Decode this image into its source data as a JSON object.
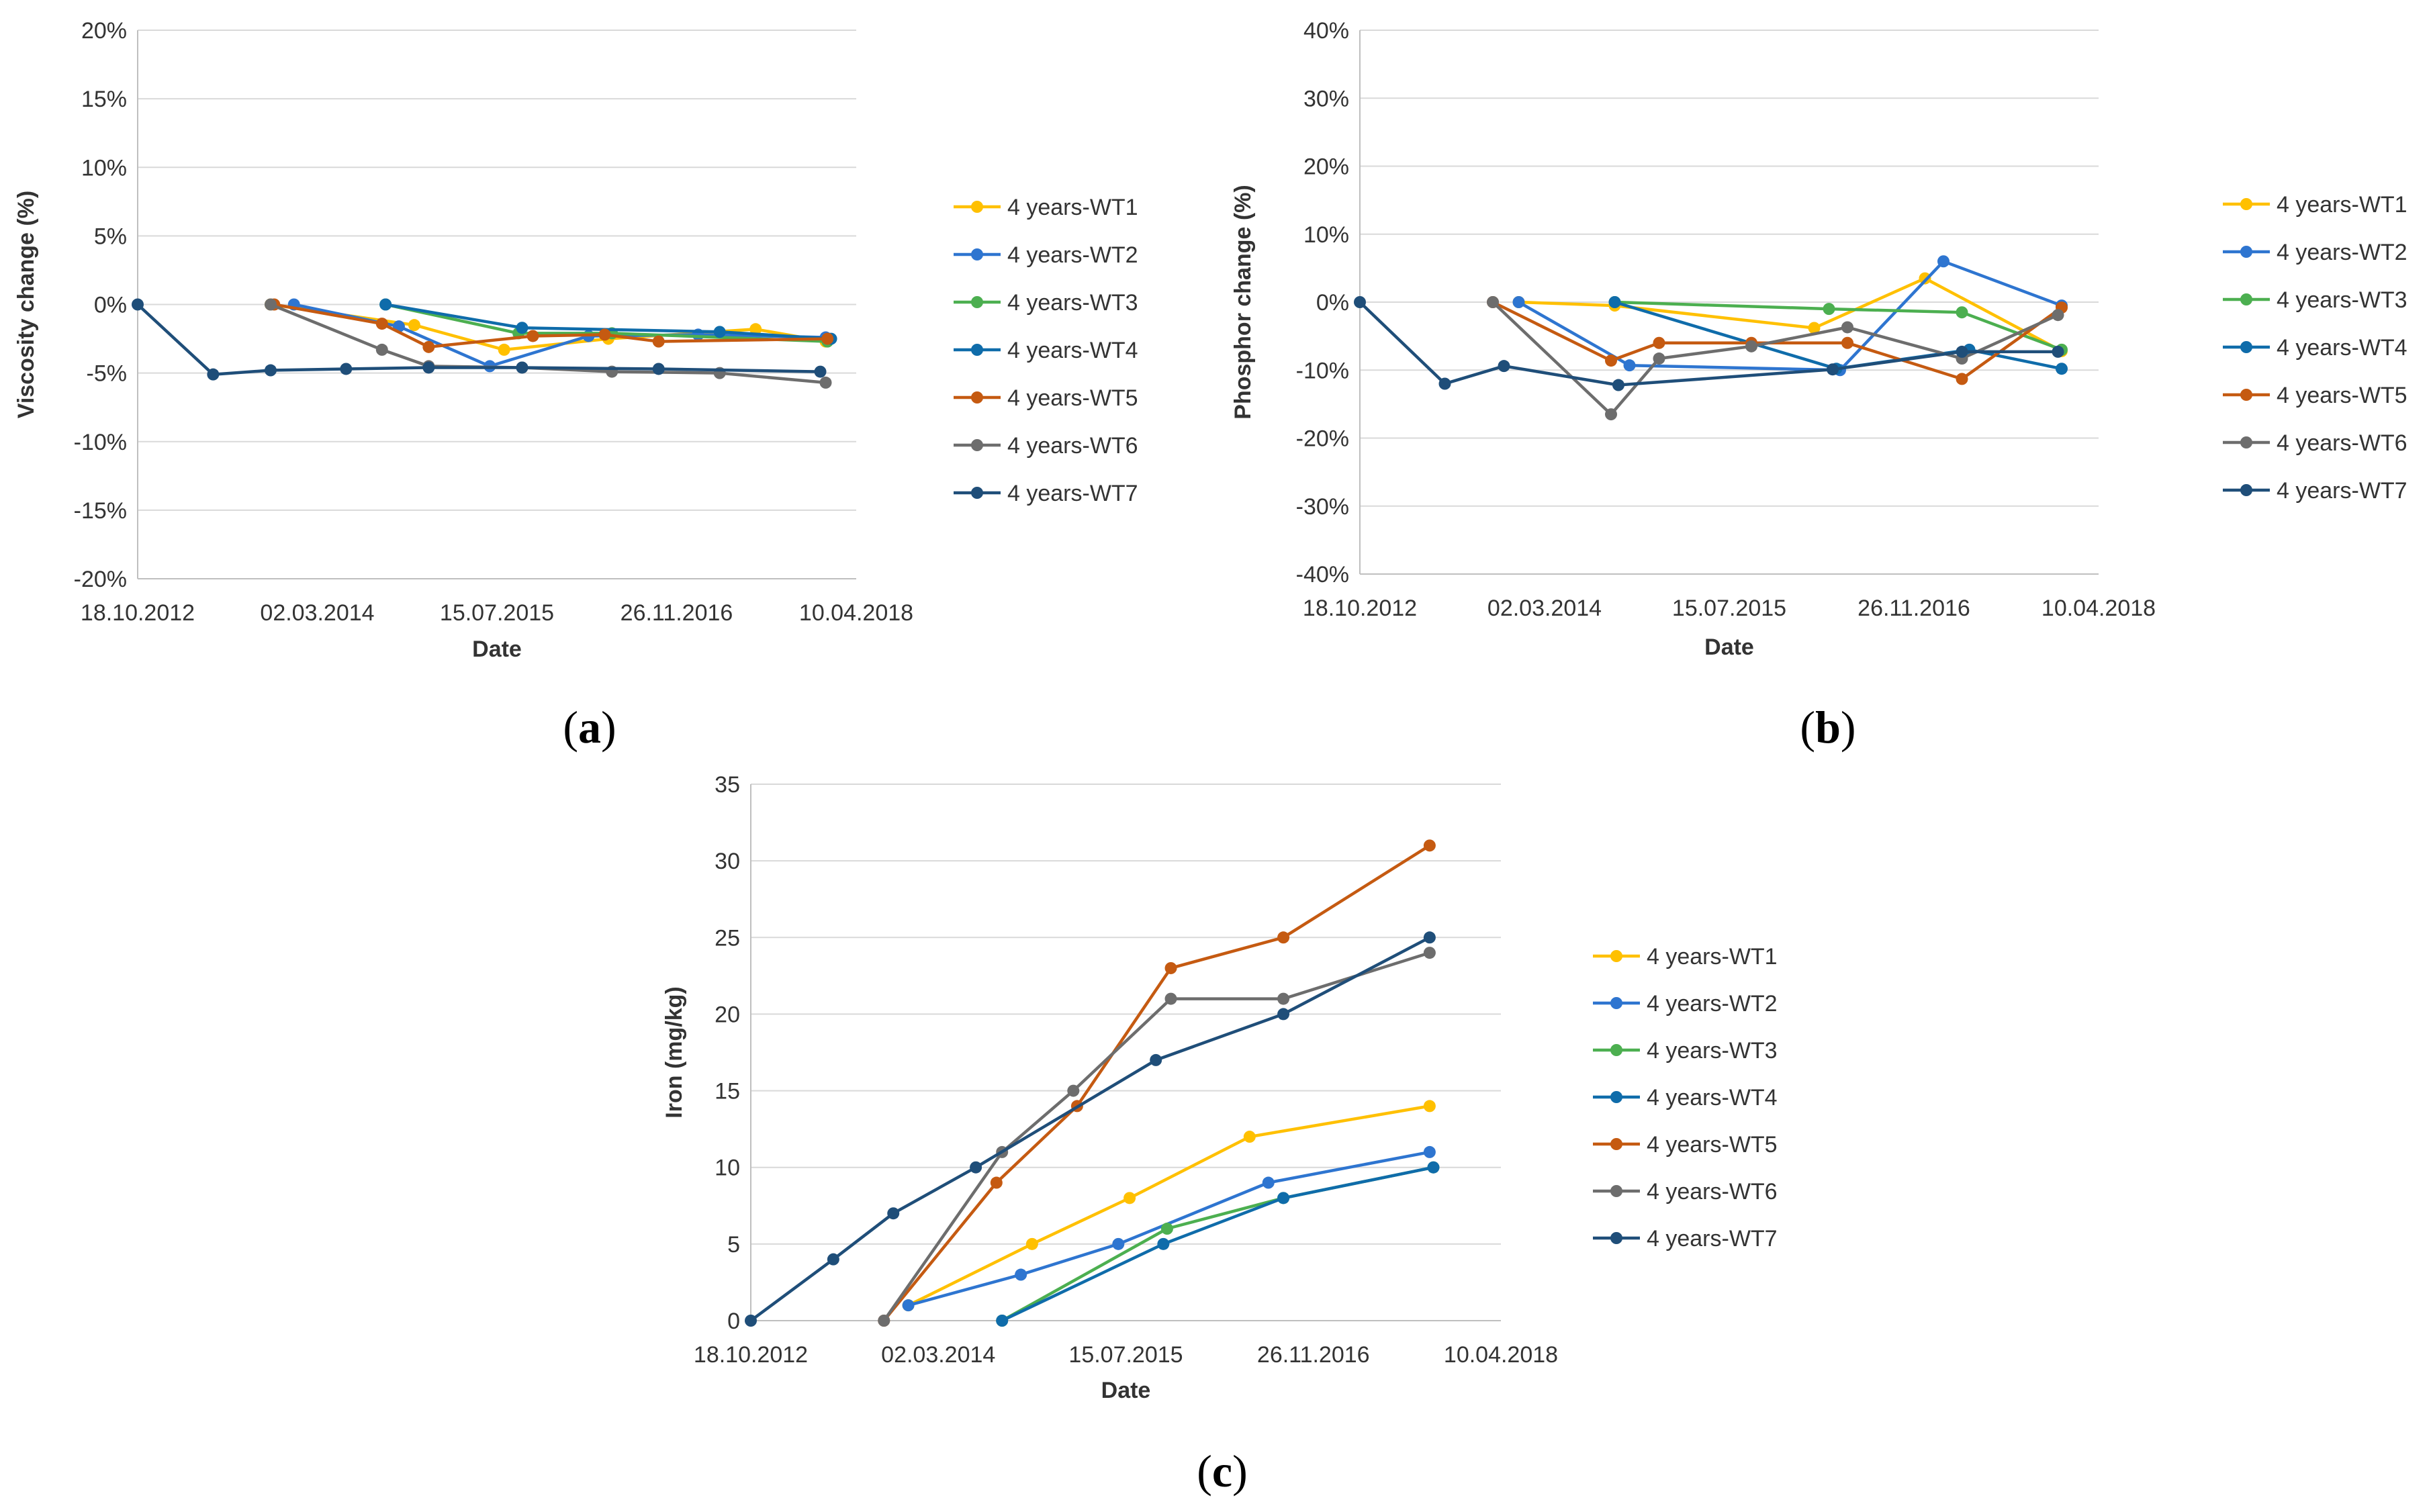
{
  "chart_data": [
    {
      "id": "a",
      "type": "line",
      "panel_label": "a",
      "title": "",
      "xlabel": "Date",
      "ylabel": "Viscosity change (%)",
      "x_ticks": [
        "18.10.2012",
        "02.03.2014",
        "15.07.2015",
        "26.11.2016",
        "10.04.2018"
      ],
      "x_tick_values": [
        0,
        500,
        1000,
        1500,
        2000
      ],
      "x_unit": "days since 18.10.2012",
      "xlim": [
        0,
        2000
      ],
      "ylim": [
        -20,
        20
      ],
      "y_ticks": [
        20,
        15,
        10,
        5,
        0,
        -5,
        -10,
        -15,
        -20
      ],
      "y_tick_labels": [
        "20%",
        "15%",
        "10%",
        "5%",
        "0%",
        "-5%",
        "-10%",
        "-15%",
        "-20%"
      ],
      "grid": true,
      "legend_position": "right",
      "series": [
        {
          "name": "4 years-WT1",
          "color": "#FFC000",
          "x": [
            370,
            770,
            1020,
            1310,
            1720,
            1915
          ],
          "y": [
            0,
            -1.5,
            -3.3,
            -2.5,
            -1.8,
            -2.7
          ]
        },
        {
          "name": "4 years-WT2",
          "color": "#2E75D0",
          "x": [
            435,
            727,
            980,
            1255,
            1560,
            1915
          ],
          "y": [
            0,
            -1.6,
            -4.5,
            -2.3,
            -2.2,
            -2.4
          ]
        },
        {
          "name": "4 years-WT3",
          "color": "#4CAF50",
          "x": [
            690,
            1060,
            1320,
            1920
          ],
          "y": [
            0,
            -2.1,
            -2.1,
            -2.7
          ]
        },
        {
          "name": "4 years-WT4",
          "color": "#0F6CAA",
          "x": [
            690,
            1070,
            1620,
            1930
          ],
          "y": [
            0,
            -1.7,
            -2.0,
            -2.5
          ]
        },
        {
          "name": "4 years-WT5",
          "color": "#C55A11",
          "x": [
            380,
            680,
            810,
            1100,
            1300,
            1450,
            1920
          ],
          "y": [
            0,
            -1.4,
            -3.1,
            -2.3,
            -2.2,
            -2.7,
            -2.5
          ]
        },
        {
          "name": "4 years-WT6",
          "color": "#6D6D6D",
          "x": [
            370,
            680,
            810,
            1070,
            1320,
            1620,
            1915
          ],
          "y": [
            0,
            -3.3,
            -4.5,
            -4.6,
            -4.9,
            -5.0,
            -5.7
          ]
        },
        {
          "name": "4 years-WT7",
          "color": "#1F4E79",
          "x": [
            0,
            210,
            370,
            580,
            810,
            1070,
            1450,
            1900
          ],
          "y": [
            0,
            -5.1,
            -4.8,
            -4.7,
            -4.6,
            -4.6,
            -4.7,
            -4.9
          ]
        }
      ]
    },
    {
      "id": "b",
      "type": "line",
      "panel_label": "b",
      "title": "",
      "xlabel": "Date",
      "ylabel": "Phosphor change (%)",
      "x_ticks": [
        "18.10.2012",
        "02.03.2014",
        "15.07.2015",
        "26.11.2016",
        "10.04.2018"
      ],
      "x_tick_values": [
        0,
        500,
        1000,
        1500,
        2000
      ],
      "x_unit": "days since 18.10.2012",
      "xlim": [
        0,
        2000
      ],
      "ylim": [
        -40,
        40
      ],
      "y_ticks": [
        40,
        30,
        20,
        10,
        0,
        -10,
        -20,
        -30,
        -40
      ],
      "y_tick_labels": [
        "40%",
        "30%",
        "20%",
        "10%",
        "0%",
        "-10%",
        "-20%",
        "-30%",
        "-40%"
      ],
      "grid": true,
      "legend_position": "right",
      "series": [
        {
          "name": "4 years-WT1",
          "color": "#FFC000",
          "x": [
            430,
            690,
            1230,
            1530,
            1900
          ],
          "y": [
            0,
            -0.5,
            -3.8,
            3.5,
            -7.2
          ]
        },
        {
          "name": "4 years-WT2",
          "color": "#2E75D0",
          "x": [
            430,
            730,
            1300,
            1580,
            1900
          ],
          "y": [
            0,
            -9.3,
            -10.0,
            6.0,
            -0.5
          ]
        },
        {
          "name": "4 years-WT3",
          "color": "#4CAF50",
          "x": [
            690,
            1270,
            1630,
            1900
          ],
          "y": [
            0,
            -1.0,
            -1.5,
            -7.0
          ]
        },
        {
          "name": "4 years-WT4",
          "color": "#0F6CAA",
          "x": [
            690,
            1290,
            1650,
            1900
          ],
          "y": [
            0,
            -9.8,
            -7.0,
            -9.8
          ]
        },
        {
          "name": "4 years-WT5",
          "color": "#C55A11",
          "x": [
            360,
            680,
            810,
            1060,
            1320,
            1630,
            1900
          ],
          "y": [
            0,
            -8.6,
            -6.0,
            -6.0,
            -6.0,
            -11.3,
            -0.8
          ]
        },
        {
          "name": "4 years-WT6",
          "color": "#6D6D6D",
          "x": [
            360,
            680,
            810,
            1060,
            1320,
            1630,
            1890
          ],
          "y": [
            0,
            -16.5,
            -8.3,
            -6.5,
            -3.7,
            -8.3,
            -1.9
          ]
        },
        {
          "name": "4 years-WT7",
          "color": "#1F4E79",
          "x": [
            0,
            230,
            390,
            700,
            1280,
            1630,
            1890
          ],
          "y": [
            0,
            -12.0,
            -9.4,
            -12.2,
            -9.9,
            -7.3,
            -7.3
          ]
        }
      ]
    },
    {
      "id": "c",
      "type": "line",
      "panel_label": "c",
      "title": "",
      "xlabel": "Date",
      "ylabel": "Iron (mg/kg)",
      "x_ticks": [
        "18.10.2012",
        "02.03.2014",
        "15.07.2015",
        "26.11.2016",
        "10.04.2018"
      ],
      "x_tick_values": [
        0,
        500,
        1000,
        1500,
        2000
      ],
      "x_unit": "days since 18.10.2012",
      "xlim": [
        0,
        2000
      ],
      "ylim": [
        0,
        35
      ],
      "y_ticks": [
        35,
        30,
        25,
        20,
        15,
        10,
        5,
        0
      ],
      "y_tick_labels": [
        "35",
        "30",
        "25",
        "20",
        "15",
        "10",
        "5",
        "0"
      ],
      "grid": true,
      "legend_position": "right",
      "series": [
        {
          "name": "4 years-WT1",
          "color": "#FFC000",
          "x": [
            420,
            750,
            1010,
            1330,
            1810
          ],
          "y": [
            1,
            5,
            8,
            12,
            14
          ]
        },
        {
          "name": "4 years-WT2",
          "color": "#2E75D0",
          "x": [
            420,
            720,
            980,
            1380,
            1810
          ],
          "y": [
            1,
            3,
            5,
            9,
            11
          ]
        },
        {
          "name": "4 years-WT3",
          "color": "#4CAF50",
          "x": [
            670,
            1110,
            1420,
            1820
          ],
          "y": [
            0,
            6,
            8,
            10
          ]
        },
        {
          "name": "4 years-WT4",
          "color": "#0F6CAA",
          "x": [
            670,
            1100,
            1420,
            1820
          ],
          "y": [
            0,
            5,
            8,
            10
          ]
        },
        {
          "name": "4 years-WT5",
          "color": "#C55A11",
          "x": [
            355,
            655,
            870,
            1120,
            1420,
            1810
          ],
          "y": [
            0,
            9,
            14,
            23,
            25,
            31
          ]
        },
        {
          "name": "4 years-WT6",
          "color": "#6D6D6D",
          "x": [
            355,
            670,
            860,
            1120,
            1420,
            1810
          ],
          "y": [
            0,
            11,
            15,
            21,
            21,
            24
          ]
        },
        {
          "name": "4 years-WT7",
          "color": "#1F4E79",
          "x": [
            0,
            220,
            380,
            600,
            1080,
            1420,
            1810
          ],
          "y": [
            0,
            4,
            7,
            10,
            17,
            20,
            25
          ]
        }
      ]
    }
  ]
}
